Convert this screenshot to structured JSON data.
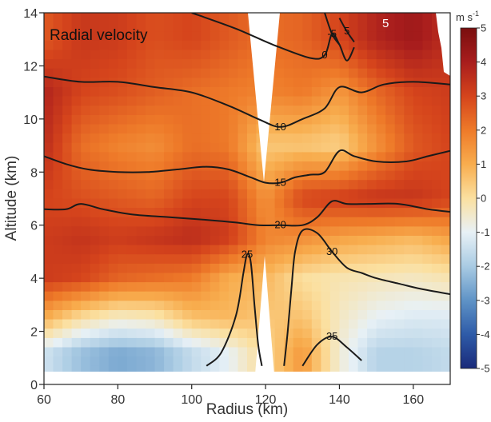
{
  "chart_data": {
    "type": "heatmap",
    "title": "Radial velocity",
    "xlabel": "Radius (km)",
    "ylabel": "Altitude (km)",
    "xlim": [
      60,
      170
    ],
    "ylim": [
      0,
      14
    ],
    "xticks": [
      60,
      80,
      100,
      120,
      140,
      160
    ],
    "yticks": [
      0,
      2,
      4,
      6,
      8,
      10,
      12,
      14
    ],
    "grid": false,
    "colorbar": {
      "unit_prefix": "m s",
      "unit_exponent": "-1",
      "range": [
        -5,
        5
      ],
      "ticks": [
        5,
        4,
        3,
        2,
        1,
        0,
        -1,
        -2,
        -3,
        -4,
        -5
      ],
      "colors": [
        "#1a2a7a",
        "#2e5ba8",
        "#5f93c6",
        "#a9cbe3",
        "#e8f1f6",
        "#fbe0a0",
        "#f8ad4e",
        "#ee7a29",
        "#d5441c",
        "#a81d1d",
        "#7a0f0f"
      ]
    },
    "shaded_field": [
      {
        "altitude": 13,
        "values": [
          2.6,
          3.3,
          3.2,
          2.8,
          3.0,
          2.6,
          2.2,
          2.4,
          3.0,
          3.8,
          4.2,
          3.5
        ]
      },
      {
        "altitude": 11,
        "values": [
          3.8,
          3.0,
          2.8,
          2.5,
          2.2,
          2.0,
          1.8,
          2.0,
          1.4,
          2.3,
          3.0,
          3.2
        ]
      },
      {
        "altitude": 9,
        "values": [
          3.6,
          2.2,
          1.8,
          1.6,
          2.2,
          2.0,
          0.5,
          0.5,
          0.3,
          1.5,
          2.6,
          3.0
        ]
      },
      {
        "altitude": 7,
        "values": [
          3.0,
          2.8,
          2.6,
          2.4,
          3.0,
          3.0,
          1.5,
          3.0,
          3.2,
          3.4,
          3.4,
          3.0
        ]
      },
      {
        "altitude": 5.5,
        "values": [
          3.2,
          3.4,
          3.2,
          3.4,
          3.6,
          3.2,
          1.8,
          1.6,
          1.2,
          1.0,
          0.8,
          1.2
        ]
      },
      {
        "altitude": 4,
        "values": [
          3.2,
          3.0,
          2.4,
          2.2,
          2.0,
          1.0,
          0.8,
          0.0,
          -0.2,
          -0.3,
          -0.4,
          -0.2
        ]
      },
      {
        "altitude": 2.5,
        "values": [
          1.0,
          0.0,
          -0.5,
          -0.3,
          0.6,
          0.8,
          0.5,
          0.6,
          -0.4,
          -1.0,
          -1.2,
          -1.2
        ]
      },
      {
        "altitude": 1.2,
        "values": [
          -1.4,
          -2.2,
          -2.6,
          -2.4,
          -1.6,
          -1.0,
          0.2,
          1.4,
          -0.6,
          -1.8,
          -1.8,
          -1.6
        ]
      }
    ],
    "shaded_field_radii": [
      60,
      70,
      80,
      90,
      100,
      110,
      120,
      130,
      140,
      150,
      160,
      170
    ],
    "contours": [
      {
        "label": "-5",
        "points": [
          [
            136,
            14.0
          ],
          [
            138,
            13.2
          ],
          [
            140,
            12.8
          ]
        ]
      },
      {
        "label": "5",
        "points": [
          [
            140,
            13.8
          ],
          [
            142,
            13.3
          ],
          [
            144,
            12.9
          ]
        ]
      },
      {
        "label": "0",
        "points": [
          [
            100,
            14.0
          ],
          [
            112,
            13.4
          ],
          [
            122,
            12.8
          ],
          [
            132,
            12.3
          ],
          [
            136,
            12.4
          ],
          [
            138,
            13.2
          ],
          [
            140,
            12.8
          ],
          [
            142,
            12.2
          ],
          [
            144,
            12.7
          ]
        ]
      },
      {
        "label": "10",
        "points": [
          [
            60,
            11.6
          ],
          [
            70,
            11.4
          ],
          [
            80,
            11.4
          ],
          [
            90,
            11.2
          ],
          [
            100,
            11.0
          ],
          [
            110,
            10.5
          ],
          [
            118,
            10.0
          ],
          [
            124,
            9.7
          ],
          [
            130,
            10.0
          ],
          [
            136,
            10.4
          ],
          [
            140,
            11.2
          ],
          [
            146,
            11.0
          ],
          [
            152,
            11.3
          ],
          [
            160,
            11.4
          ],
          [
            170,
            11.3
          ]
        ]
      },
      {
        "label": "15",
        "points": [
          [
            60,
            8.6
          ],
          [
            66,
            8.3
          ],
          [
            72,
            8.1
          ],
          [
            80,
            8.0
          ],
          [
            88,
            8.0
          ],
          [
            96,
            8.1
          ],
          [
            104,
            8.2
          ],
          [
            110,
            8.1
          ],
          [
            116,
            7.8
          ],
          [
            120,
            7.6
          ],
          [
            124,
            7.6
          ],
          [
            128,
            7.8
          ],
          [
            132,
            7.9
          ],
          [
            136,
            8.0
          ],
          [
            140,
            8.8
          ],
          [
            144,
            8.6
          ],
          [
            150,
            8.4
          ],
          [
            158,
            8.4
          ],
          [
            164,
            8.6
          ],
          [
            170,
            8.8
          ]
        ]
      },
      {
        "label": "20",
        "points": [
          [
            60,
            6.6
          ],
          [
            66,
            6.6
          ],
          [
            70,
            6.8
          ],
          [
            76,
            6.6
          ],
          [
            84,
            6.4
          ],
          [
            94,
            6.3
          ],
          [
            104,
            6.2
          ],
          [
            112,
            6.1
          ],
          [
            118,
            6.0
          ],
          [
            124,
            6.0
          ],
          [
            130,
            6.0
          ],
          [
            134,
            6.3
          ],
          [
            138,
            6.9
          ],
          [
            142,
            6.8
          ],
          [
            148,
            6.8
          ],
          [
            156,
            6.8
          ],
          [
            164,
            6.6
          ],
          [
            170,
            6.5
          ]
        ]
      },
      {
        "label": "25",
        "points": [
          [
            104,
            0.7
          ],
          [
            108,
            1.2
          ],
          [
            112,
            2.6
          ],
          [
            114,
            4.2
          ],
          [
            115,
            4.9
          ],
          [
            116,
            4.6
          ],
          [
            117,
            3.0
          ],
          [
            118,
            1.5
          ],
          [
            119,
            0.7
          ]
        ]
      },
      {
        "label": "30",
        "points": [
          [
            125,
            0.7
          ],
          [
            126,
            2.0
          ],
          [
            127,
            3.6
          ],
          [
            128,
            5.0
          ],
          [
            130,
            5.8
          ],
          [
            134,
            5.7
          ],
          [
            138,
            5.0
          ],
          [
            142,
            4.4
          ],
          [
            146,
            4.2
          ],
          [
            150,
            4.0
          ],
          [
            156,
            3.8
          ],
          [
            162,
            3.6
          ],
          [
            170,
            3.4
          ]
        ]
      },
      {
        "label": "35",
        "points": [
          [
            130,
            0.7
          ],
          [
            134,
            1.5
          ],
          [
            138,
            1.8
          ],
          [
            142,
            1.4
          ],
          [
            146,
            0.9
          ]
        ]
      }
    ],
    "annotations": [
      "5"
    ]
  }
}
